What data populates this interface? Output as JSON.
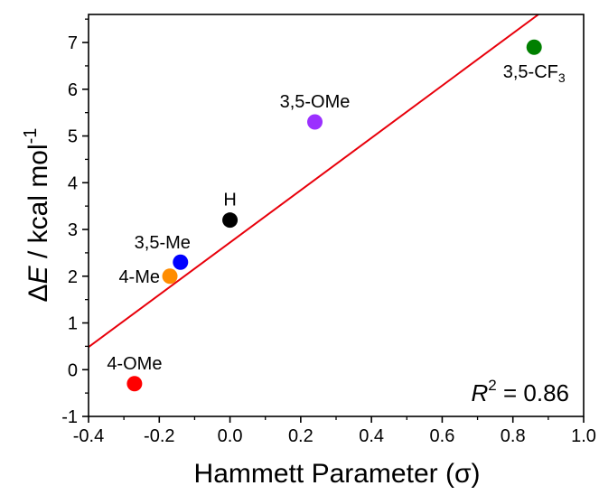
{
  "chart_data": {
    "type": "scatter",
    "xlabel": "Hammett Parameter (σ)",
    "ylabel": {
      "delta": "Δ",
      "var": "E",
      "rest": " / kcal mol",
      "sup": "-1"
    },
    "xlim": [
      -0.4,
      1.0
    ],
    "ylim": [
      -1,
      7.6
    ],
    "xticks": [
      "-0.4",
      "-0.2",
      "0.0",
      "0.2",
      "0.4",
      "0.6",
      "0.8",
      "1.0"
    ],
    "yticks": [
      "-1",
      "0",
      "1",
      "2",
      "3",
      "4",
      "5",
      "6",
      "7"
    ],
    "points": [
      {
        "label": "4-OMe",
        "x": -0.27,
        "y": -0.3,
        "color": "#ff0000",
        "label_pos": "above"
      },
      {
        "label": "4-Me",
        "x": -0.17,
        "y": 2.0,
        "color": "#ff8c00",
        "label_pos": "left"
      },
      {
        "label": "3,5-Me",
        "x": -0.14,
        "y": 2.3,
        "color": "#0000ff",
        "label_pos": "above-left"
      },
      {
        "label": "H",
        "x": 0.0,
        "y": 3.2,
        "color": "#000000",
        "label_pos": "above"
      },
      {
        "label": "3,5-OMe",
        "x": 0.24,
        "y": 5.3,
        "color": "#9b30ff",
        "label_pos": "above"
      },
      {
        "label": "3,5-CF",
        "sub": "3",
        "x": 0.86,
        "y": 6.9,
        "color": "#008000",
        "label_pos": "below"
      }
    ],
    "fit_line": {
      "x": [
        -0.4,
        0.8722
      ],
      "y": [
        0.484,
        7.6
      ],
      "color": "#e8000b"
    },
    "annotation": {
      "var": "R",
      "sup": "2",
      "rest": " = 0.86"
    },
    "grid": false,
    "legend": "none"
  }
}
